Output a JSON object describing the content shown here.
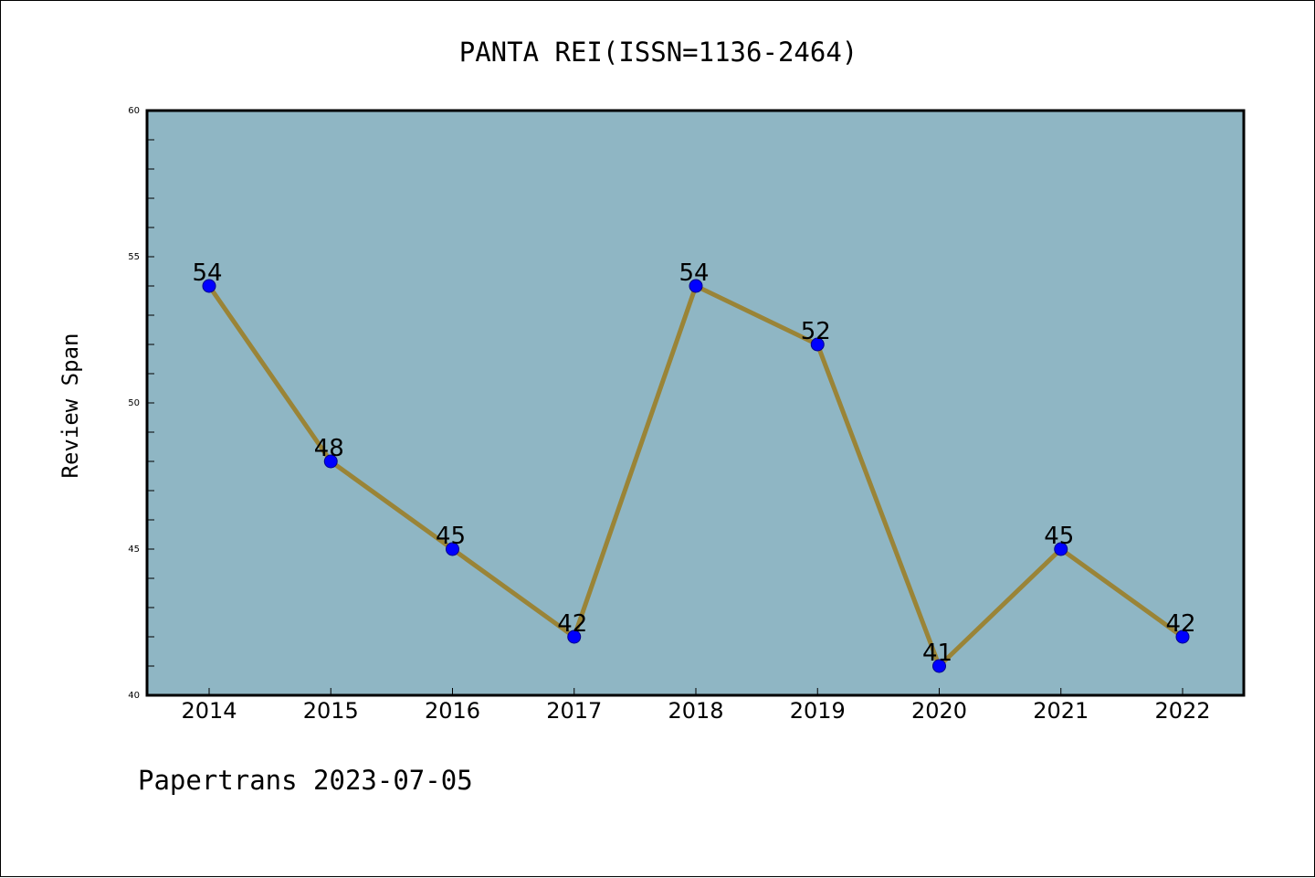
{
  "chart_data": {
    "type": "line",
    "title": "PANTA REI(ISSN=1136-2464)",
    "xlabel": "",
    "ylabel": "Review Span",
    "categories": [
      "2014",
      "2015",
      "2016",
      "2017",
      "2018",
      "2019",
      "2020",
      "2021",
      "2022"
    ],
    "series": [
      {
        "values": [
          54,
          48,
          45,
          42,
          54,
          52,
          41,
          45,
          42
        ]
      }
    ],
    "ylim": [
      40,
      60
    ],
    "yticks": [
      "40",
      "45",
      "50",
      "55",
      "60"
    ],
    "grid": false,
    "legend": "none",
    "data_labels": true,
    "colors": {
      "plot_background": "#8fb6c4",
      "line": "#9a8437",
      "marker": "#0000ff"
    }
  },
  "footer": "Papertrans 2023-07-05"
}
